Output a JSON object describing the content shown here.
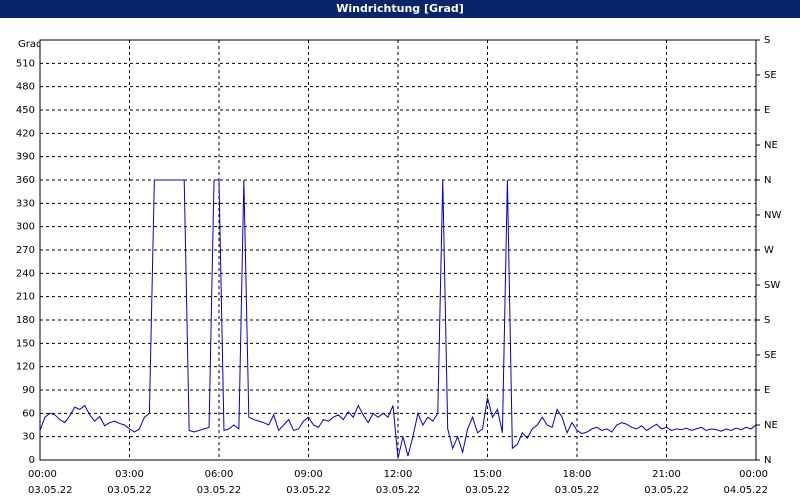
{
  "chart_data": {
    "type": "line",
    "title": "Windrichtung [Grad]",
    "y_label": "Grad",
    "color": "#0000cc",
    "grid": true,
    "xlim": [
      0,
      1440
    ],
    "xticks": [
      {
        "value": 0,
        "label": "00:00"
      },
      {
        "value": 180,
        "label": "03:00"
      },
      {
        "value": 360,
        "label": "06:00"
      },
      {
        "value": 540,
        "label": "09:00"
      },
      {
        "value": 720,
        "label": "12:00"
      },
      {
        "value": 900,
        "label": "15:00"
      },
      {
        "value": 1080,
        "label": "18:00"
      },
      {
        "value": 1260,
        "label": "21:00"
      },
      {
        "value": 1440,
        "label": "00:00"
      }
    ],
    "xtick_dates": [
      "03.05.22",
      "03.05.22",
      "03.05.22",
      "03.05.22",
      "03.05.22",
      "03.05.22",
      "03.05.22",
      "03.05.22",
      "04.05.22"
    ],
    "ylim": [
      0,
      540
    ],
    "yticks": [
      0,
      30,
      60,
      90,
      120,
      150,
      180,
      210,
      240,
      270,
      300,
      330,
      360,
      390,
      420,
      450,
      480,
      510
    ],
    "y2lim": [
      0,
      540
    ],
    "y2ticks": [
      {
        "value": 0,
        "label": "N"
      },
      {
        "value": 45,
        "label": "NE"
      },
      {
        "value": 90,
        "label": "E"
      },
      {
        "value": 135,
        "label": "SE"
      },
      {
        "value": 180,
        "label": "S"
      },
      {
        "value": 225,
        "label": "SW"
      },
      {
        "value": 270,
        "label": "W"
      },
      {
        "value": 315,
        "label": "NW"
      },
      {
        "value": 360,
        "label": "N"
      },
      {
        "value": 405,
        "label": "NE"
      },
      {
        "value": 450,
        "label": "E"
      },
      {
        "value": 495,
        "label": "SE"
      },
      {
        "value": 540,
        "label": "S"
      }
    ],
    "x": [
      0,
      10,
      20,
      30,
      40,
      50,
      60,
      70,
      80,
      90,
      100,
      110,
      120,
      130,
      140,
      150,
      160,
      170,
      180,
      190,
      200,
      210,
      220,
      230,
      240,
      250,
      260,
      270,
      280,
      290,
      300,
      310,
      320,
      330,
      340,
      350,
      360,
      370,
      380,
      390,
      400,
      410,
      420,
      430,
      440,
      450,
      460,
      470,
      480,
      490,
      500,
      510,
      520,
      530,
      540,
      550,
      560,
      570,
      580,
      590,
      600,
      610,
      620,
      630,
      640,
      650,
      660,
      670,
      680,
      690,
      700,
      710,
      720,
      730,
      740,
      750,
      760,
      770,
      780,
      790,
      800,
      810,
      820,
      830,
      840,
      850,
      860,
      870,
      880,
      890,
      900,
      910,
      920,
      930,
      940,
      950,
      960,
      970,
      980,
      990,
      1000,
      1010,
      1020,
      1030,
      1040,
      1050,
      1060,
      1070,
      1080,
      1090,
      1100,
      1110,
      1120,
      1130,
      1140,
      1150,
      1160,
      1170,
      1180,
      1190,
      1200,
      1210,
      1220,
      1230,
      1240,
      1250,
      1260,
      1270,
      1280,
      1290,
      1300,
      1310,
      1320,
      1330,
      1340,
      1350,
      1360,
      1370,
      1380,
      1390,
      1400,
      1410,
      1420,
      1430,
      1440
    ],
    "values": [
      38,
      55,
      60,
      58,
      52,
      48,
      57,
      68,
      65,
      70,
      58,
      50,
      56,
      44,
      48,
      50,
      47,
      45,
      40,
      36,
      40,
      55,
      60,
      360,
      360,
      360,
      360,
      360,
      360,
      360,
      38,
      36,
      38,
      40,
      42,
      360,
      360,
      38,
      40,
      45,
      40,
      360,
      55,
      52,
      50,
      48,
      45,
      58,
      38,
      45,
      52,
      38,
      40,
      50,
      55,
      45,
      42,
      52,
      50,
      55,
      58,
      52,
      62,
      55,
      70,
      58,
      48,
      60,
      55,
      60,
      55,
      70,
      2,
      30,
      5,
      30,
      60,
      45,
      55,
      50,
      60,
      360,
      40,
      15,
      30,
      10,
      40,
      55,
      35,
      40,
      80,
      55,
      65,
      35,
      360,
      15,
      20,
      35,
      28,
      40,
      45,
      55,
      45,
      42,
      65,
      55,
      35,
      48,
      38,
      34,
      36,
      40,
      42,
      38,
      40,
      36,
      45,
      48,
      46,
      42,
      40,
      44,
      38,
      42,
      46,
      40,
      42,
      38,
      40,
      39,
      41,
      38,
      40,
      42,
      38,
      40,
      39,
      37,
      40,
      38,
      41,
      39,
      42,
      40,
      45
    ]
  }
}
